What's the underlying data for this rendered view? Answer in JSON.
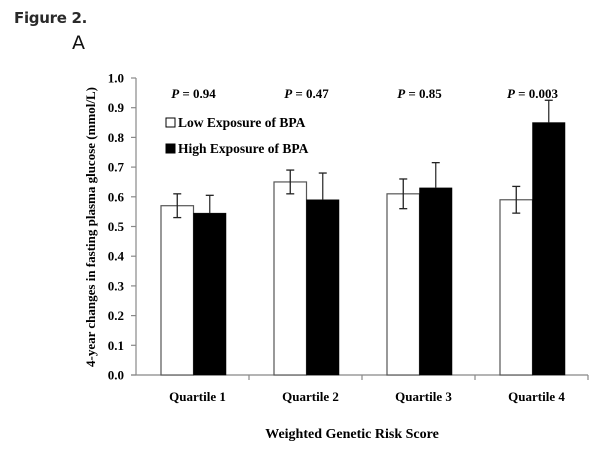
{
  "figure": {
    "title": "Figure 2.",
    "panel_label": "A"
  },
  "chart_data": {
    "type": "bar",
    "title": "",
    "xlabel": "Weighted Genetic Risk Score",
    "ylabel": "4-year changes in fasting plasma glucose (mmol/L)",
    "ylim": [
      0.0,
      1.0
    ],
    "yticks": [
      "0.0",
      "0.1",
      "0.2",
      "0.3",
      "0.4",
      "0.5",
      "0.6",
      "0.7",
      "0.8",
      "0.9",
      "1.0"
    ],
    "ytick_values": [
      0.0,
      0.1,
      0.2,
      0.3,
      0.4,
      0.5,
      0.6,
      0.7,
      0.8,
      0.9,
      1.0
    ],
    "grid": false,
    "categories": [
      "Quartile 1",
      "Quartile 2",
      "Quartile 3",
      "Quartile 4"
    ],
    "series": [
      {
        "name": "Low Exposure of BPA",
        "color": "#ffffff",
        "values": [
          0.57,
          0.65,
          0.61,
          0.59
        ],
        "error": [
          0.04,
          0.04,
          0.05,
          0.045
        ]
      },
      {
        "name": "High Exposure of BPA",
        "color": "#000000",
        "values": [
          0.545,
          0.59,
          0.63,
          0.85
        ],
        "error": [
          0.06,
          0.09,
          0.085,
          0.075
        ]
      }
    ],
    "annotations": [
      "P = 0.94",
      "P = 0.47",
      "P = 0.85",
      "P = 0.003"
    ],
    "annotation_parts": [
      {
        "p": "P",
        "rest": " = 0.94"
      },
      {
        "p": "P",
        "rest": " = 0.47"
      },
      {
        "p": "P",
        "rest": " = 0.85"
      },
      {
        "p": "P",
        "rest": " = 0.003"
      }
    ],
    "legend": {
      "placement": "top-left",
      "entries": [
        "Low Exposure of BPA",
        "High Exposure of BPA"
      ]
    }
  }
}
